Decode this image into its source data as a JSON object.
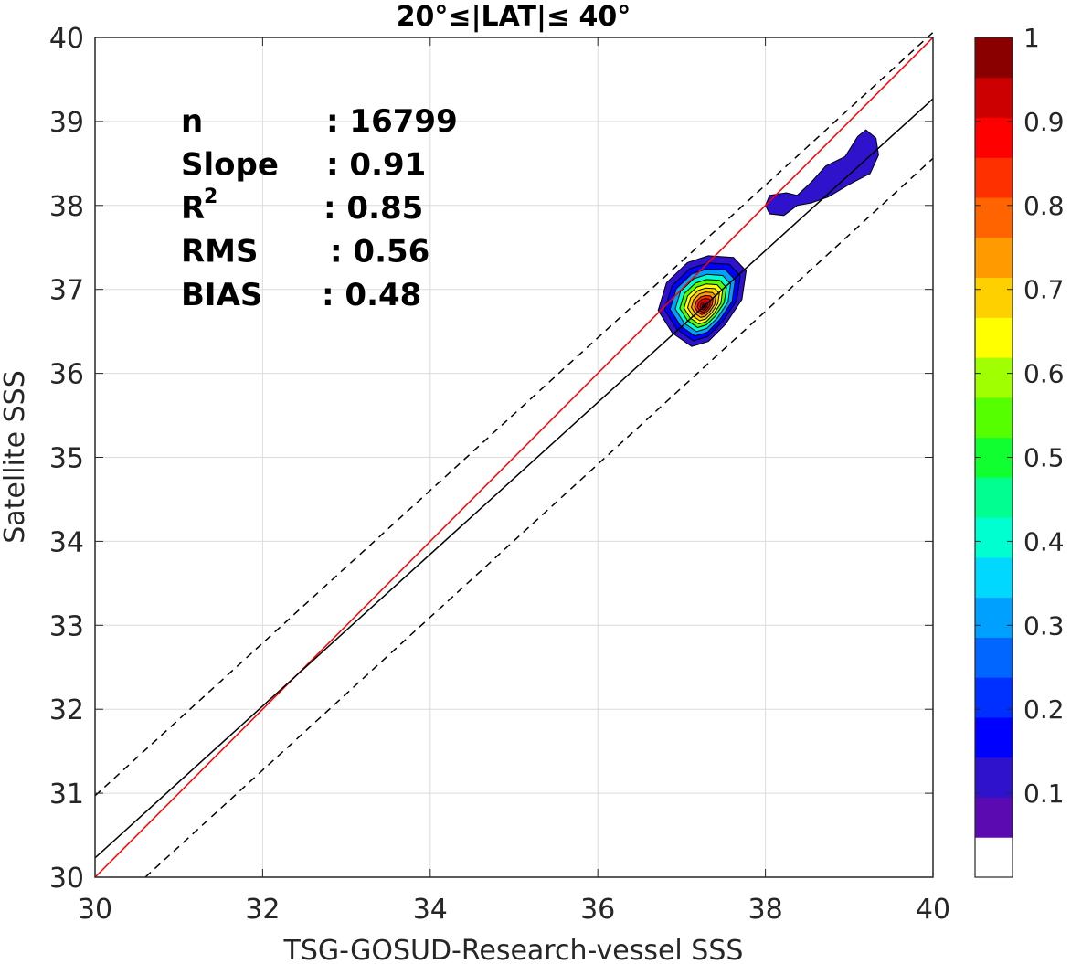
{
  "chart_data": {
    "type": "heatmap",
    "title": "20°≤|LAT|≤ 40°",
    "xlabel": "TSG-GOSUD-Research-vessel SSS",
    "ylabel": "Satellite SSS",
    "xlim": [
      30,
      40
    ],
    "ylim": [
      30,
      40
    ],
    "x_ticks": [
      "30",
      "32",
      "34",
      "36",
      "38",
      "40"
    ],
    "y_ticks": [
      "30",
      "31",
      "32",
      "33",
      "34",
      "35",
      "36",
      "37",
      "38",
      "39",
      "40"
    ],
    "grid": true,
    "stats": [
      {
        "label": "n",
        "value": ": 16799"
      },
      {
        "label": "Slope",
        "value": ": 0.91"
      },
      {
        "label": "R",
        "sup": "2",
        "value": ": 0.85"
      },
      {
        "label": "RMS",
        "value": ": 0.56"
      },
      {
        "label": "BIAS",
        "value": ": 0.48"
      }
    ],
    "lines": [
      {
        "name": "identity",
        "color": "#ff0000",
        "style": "solid",
        "points": [
          [
            30,
            30
          ],
          [
            40,
            40
          ]
        ]
      },
      {
        "name": "fit",
        "color": "#000000",
        "style": "solid",
        "points": [
          [
            30,
            30.23
          ],
          [
            40,
            39.27
          ]
        ]
      },
      {
        "name": "upper",
        "color": "#000000",
        "style": "dashed",
        "points": [
          [
            30,
            30.97
          ],
          [
            40,
            40.06
          ]
        ]
      },
      {
        "name": "lower",
        "color": "#000000",
        "style": "dashed",
        "points": [
          [
            30.6,
            30.0
          ],
          [
            40,
            38.56
          ]
        ]
      }
    ],
    "density_peak": {
      "x": 37.27,
      "y": 36.8
    },
    "colorbar": {
      "min": 0,
      "max": 1,
      "ticks": [
        "0.1",
        "0.2",
        "0.3",
        "0.4",
        "0.5",
        "0.6",
        "0.7",
        "0.8",
        "0.9",
        "1"
      ],
      "colors": [
        "#ffffff",
        "#5a0ab0",
        "#2e12cc",
        "#0000ff",
        "#0030ff",
        "#0066ff",
        "#00a0ff",
        "#00d8ff",
        "#00ffd0",
        "#00ff90",
        "#10ff30",
        "#55ff00",
        "#a0ff00",
        "#ffff00",
        "#ffd000",
        "#ff9a00",
        "#ff6400",
        "#ff3000",
        "#ff0000",
        "#cc0000",
        "#8a0000"
      ]
    }
  }
}
